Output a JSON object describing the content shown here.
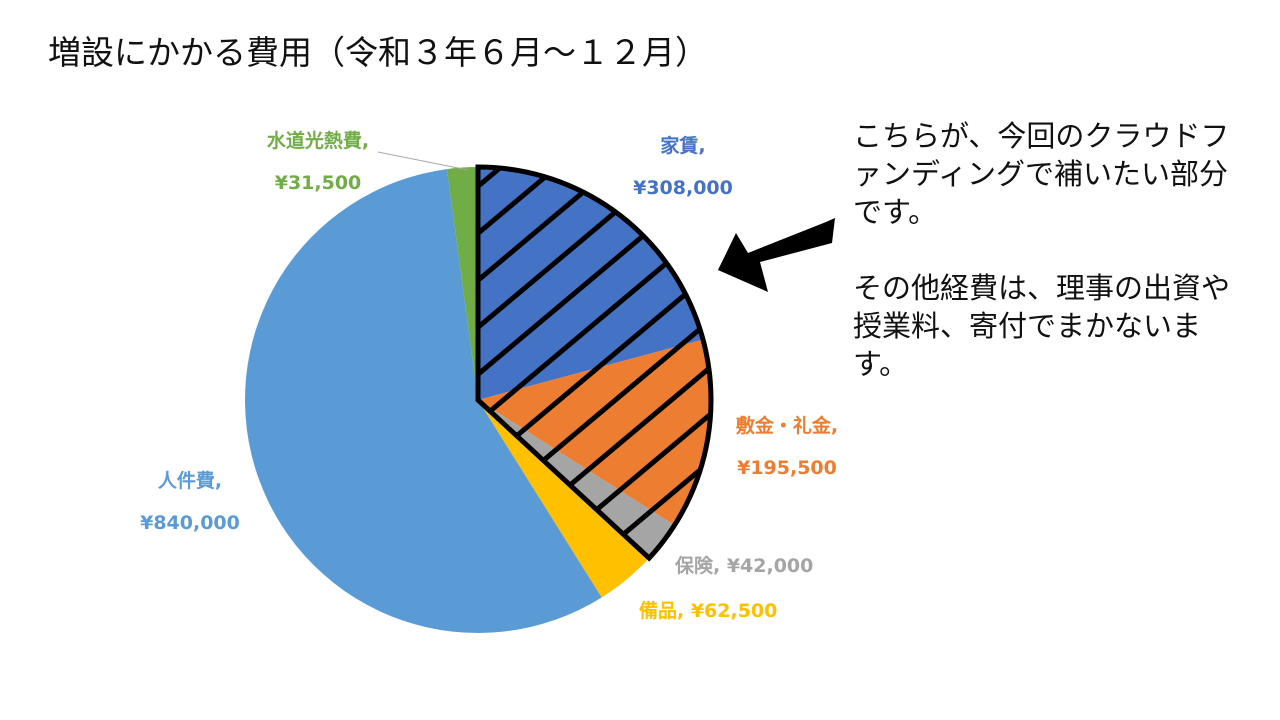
{
  "title": "増設にかかる費用（令和３年６月～１２月）",
  "note": {
    "paragraph1": "こちらが、今回のクラウドファンディングで補いたい部分です。",
    "paragraph2": "その他経費は、理事の出資や授業料、寄付でまかないます。"
  },
  "chart_data": {
    "type": "pie",
    "title": "増設にかかる費用（令和３年６月～１２月）",
    "start": "top, clockwise",
    "slices": [
      {
        "name": "家賃",
        "value": 308000,
        "label": "¥308,000",
        "color": "#4472c4",
        "highlighted": true
      },
      {
        "name": "敷金・礼金",
        "value": 195500,
        "label": "¥195,500",
        "color": "#ed7d31",
        "highlighted": true
      },
      {
        "name": "保険",
        "value": 42000,
        "label": "¥42,000",
        "color": "#a5a5a5",
        "highlighted": true
      },
      {
        "name": "備品",
        "value": 62500,
        "label": "¥62,500",
        "color": "#ffc000",
        "highlighted": false
      },
      {
        "name": "人件費",
        "value": 840000,
        "label": "¥840,000",
        "color": "#5b9bd5",
        "highlighted": false
      },
      {
        "name": "水道光熱費",
        "value": 31500,
        "label": "¥31,500",
        "color": "#70ad47",
        "highlighted": false
      }
    ]
  }
}
